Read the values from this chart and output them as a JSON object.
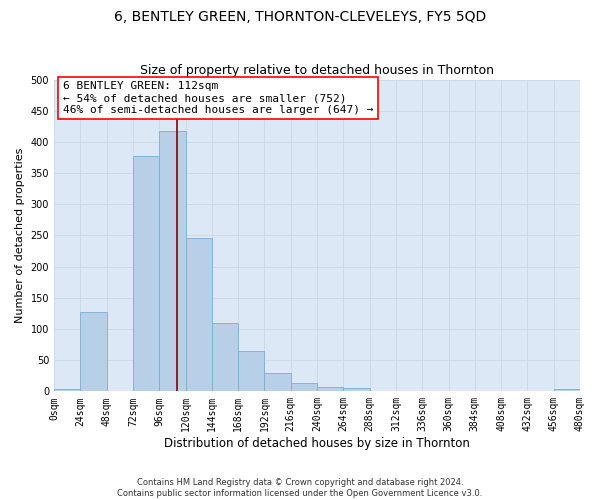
{
  "title": "6, BENTLEY GREEN, THORNTON-CLEVELEYS, FY5 5QD",
  "subtitle": "Size of property relative to detached houses in Thornton",
  "xlabel": "Distribution of detached houses by size in Thornton",
  "ylabel": "Number of detached properties",
  "bin_edges": [
    0,
    24,
    48,
    72,
    96,
    120,
    144,
    168,
    192,
    216,
    240,
    264,
    288,
    312,
    336,
    360,
    384,
    408,
    432,
    456,
    480
  ],
  "bar_heights": [
    3,
    128,
    0,
    378,
    418,
    246,
    110,
    65,
    30,
    13,
    7,
    6,
    0,
    0,
    0,
    0,
    0,
    0,
    0,
    3
  ],
  "bar_color": "#b8cfe8",
  "bar_edge_color": "#7aaed4",
  "property_line_x": 112,
  "property_line_color": "#8b0000",
  "annotation_text": "6 BENTLEY GREEN: 112sqm\n← 54% of detached houses are smaller (752)\n46% of semi-detached houses are larger (647) →",
  "annotation_box_color": "white",
  "annotation_box_edge_color": "red",
  "xlim": [
    0,
    480
  ],
  "ylim": [
    0,
    500
  ],
  "ytick_values": [
    0,
    50,
    100,
    150,
    200,
    250,
    300,
    350,
    400,
    450,
    500
  ],
  "xtick_labels": [
    "0sqm",
    "24sqm",
    "48sqm",
    "72sqm",
    "96sqm",
    "120sqm",
    "144sqm",
    "168sqm",
    "192sqm",
    "216sqm",
    "240sqm",
    "264sqm",
    "288sqm",
    "312sqm",
    "336sqm",
    "360sqm",
    "384sqm",
    "408sqm",
    "432sqm",
    "456sqm",
    "480sqm"
  ],
  "xtick_positions": [
    0,
    24,
    48,
    72,
    96,
    120,
    144,
    168,
    192,
    216,
    240,
    264,
    288,
    312,
    336,
    360,
    384,
    408,
    432,
    456,
    480
  ],
  "grid_color": "#c8d8e8",
  "background_color": "#dce8f5",
  "footer_text": "Contains HM Land Registry data © Crown copyright and database right 2024.\nContains public sector information licensed under the Open Government Licence v3.0.",
  "title_fontsize": 10,
  "subtitle_fontsize": 9,
  "xlabel_fontsize": 8.5,
  "ylabel_fontsize": 8,
  "tick_fontsize": 7,
  "annotation_fontsize": 8,
  "footer_fontsize": 6
}
